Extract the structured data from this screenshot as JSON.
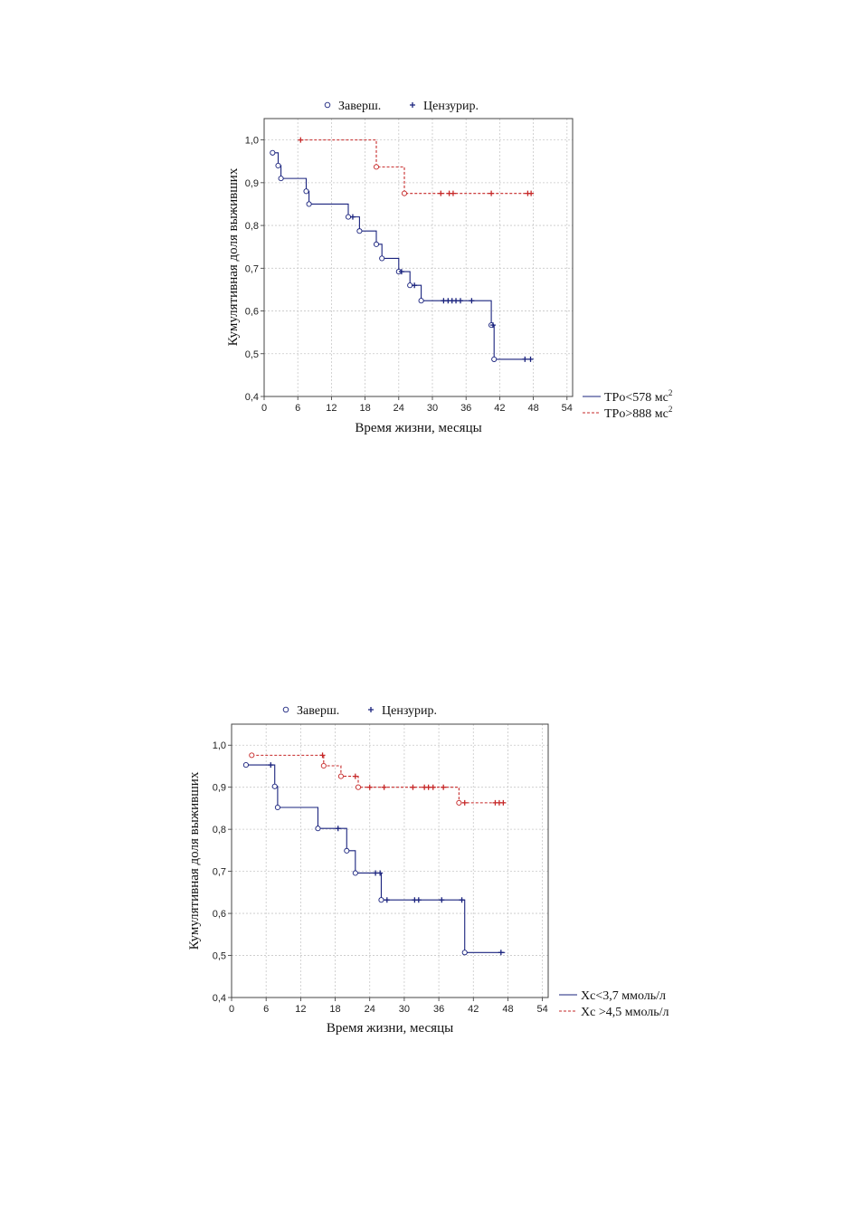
{
  "chart_data": [
    {
      "type": "line",
      "subtype": "kaplan-meier",
      "xlabel": "Время жизни, месяцы",
      "ylabel": "Кумулятивная доля выживших",
      "xlim": [
        0,
        54
      ],
      "ylim": [
        0.4,
        1.05
      ],
      "xticks": [
        "0",
        "6",
        "12",
        "18",
        "24",
        "30",
        "36",
        "42",
        "48",
        "54"
      ],
      "yticks": [
        "0,4",
        "0,5",
        "0,6",
        "0,7",
        "0,8",
        "0,9",
        "1,0"
      ],
      "grid": true,
      "marker_legend": {
        "complete": "Заверш.",
        "censored": "Цензурир.",
        "position": "top"
      },
      "series_legend_position": "right",
      "series": [
        {
          "name": "TPo<578 мс",
          "name_sup": "2",
          "color": "#1a237e",
          "style": "solid",
          "steps": [
            [
              1.5,
              0.97
            ],
            [
              2.5,
              0.94
            ],
            [
              3,
              0.91
            ],
            [
              7.5,
              0.88
            ],
            [
              8,
              0.85
            ],
            [
              15,
              0.82
            ],
            [
              17,
              0.787
            ],
            [
              20,
              0.756
            ],
            [
              21,
              0.723
            ],
            [
              24,
              0.692
            ],
            [
              26,
              0.66
            ],
            [
              28,
              0.624
            ],
            [
              40.5,
              0.567
            ],
            [
              41,
              0.487
            ]
          ],
          "end_x": 48,
          "censored": [
            15.8,
            24.5,
            26.8,
            32,
            32.8,
            33.5,
            34.2,
            35,
            37,
            40.8,
            46.5,
            47.5
          ]
        },
        {
          "name": "TPo>888 мс",
          "name_sup": "2",
          "color": "#c62828",
          "style": "dashed",
          "start_x": 6.5,
          "start_y": 1.0,
          "steps": [
            [
              20,
              0.937
            ],
            [
              25,
              0.875
            ]
          ],
          "end_x": 48,
          "censored": [
            6.5,
            31.5,
            33,
            33.7,
            40.5,
            47,
            47.6
          ]
        }
      ]
    },
    {
      "type": "line",
      "subtype": "kaplan-meier",
      "xlabel": "Время жизни, месяцы",
      "ylabel": "Кумулятивная доля выживших",
      "xlim": [
        0,
        54
      ],
      "ylim": [
        0.4,
        1.05
      ],
      "xticks": [
        "0",
        "6",
        "12",
        "18",
        "24",
        "30",
        "36",
        "42",
        "48",
        "54"
      ],
      "yticks": [
        "0,4",
        "0,5",
        "0,6",
        "0,7",
        "0,8",
        "0,9",
        "1,0"
      ],
      "grid": true,
      "marker_legend": {
        "complete": "Заверш.",
        "censored": "Цензурир.",
        "position": "top"
      },
      "series_legend_position": "right",
      "series": [
        {
          "name": "Xc<3,7 ммоль/л",
          "name_sup": "",
          "color": "#1a237e",
          "style": "solid",
          "steps": [
            [
              2.5,
              0.953
            ],
            [
              7.5,
              0.902
            ],
            [
              8,
              0.852
            ],
            [
              15,
              0.802
            ],
            [
              20,
              0.749
            ],
            [
              21.5,
              0.696
            ],
            [
              26,
              0.632
            ],
            [
              40.5,
              0.507
            ]
          ],
          "end_x": 47.5,
          "censored": [
            6.8,
            18.5,
            25,
            25.8,
            27,
            31.8,
            32.5,
            36.5,
            40,
            46.8
          ]
        },
        {
          "name": "Xc >4,5 ммоль/л",
          "name_sup": "",
          "color": "#c62828",
          "style": "dashed",
          "start_x": 3.5,
          "start_y": 0.976,
          "steps": [
            [
              16,
              0.951
            ],
            [
              19,
              0.926
            ],
            [
              22,
              0.9
            ],
            [
              39.5,
              0.863
            ]
          ],
          "end_x": 47.5,
          "censored": [
            15.8,
            21.5,
            24,
            26.5,
            31.5,
            33.5,
            34.2,
            35,
            36.8,
            40.5,
            45.8,
            46.5,
            47.2
          ]
        }
      ]
    }
  ]
}
